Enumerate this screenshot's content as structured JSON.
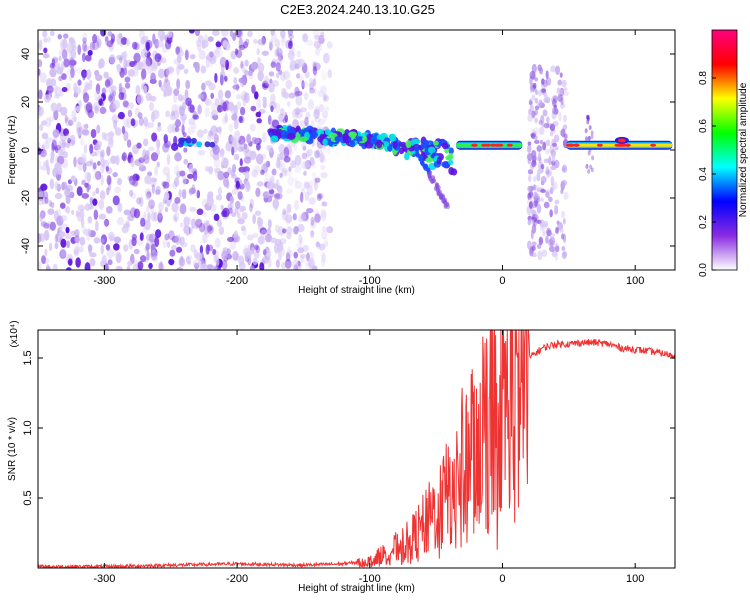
{
  "title": "C2E3.2024.240.13.10.G25",
  "chart_data": [
    {
      "type": "heatmap",
      "xlabel": "Height of straight line (km)",
      "ylabel": "Frequency (Hz)",
      "xlim": [
        -350,
        130
      ],
      "ylim": [
        -50,
        50
      ],
      "xticks": [
        -300,
        -200,
        -100,
        0,
        100
      ],
      "yticks": [
        -40,
        -20,
        0,
        20,
        40
      ],
      "colorbar": {
        "label": "Normalized spectral amplitude",
        "range": [
          0,
          1
        ],
        "ticks": [
          "0.0",
          "0.2",
          "0.4",
          "0.6",
          "0.8"
        ],
        "colormap": [
          "#ffffff",
          "#8a2be2",
          "#0000ff",
          "#00ffff",
          "#00ff00",
          "#ffff00",
          "#ff0000",
          "#ff0080"
        ]
      },
      "features": [
        {
          "x_range": [
            -350,
            -130
          ],
          "freq_range": [
            -50,
            50
          ],
          "amplitude": 0.2
        },
        {
          "x_range": [
            -175,
            -35
          ],
          "freq": [
            7,
            2
          ],
          "amplitude": 0.5
        },
        {
          "x_range": [
            -35,
            15
          ],
          "freq": 2,
          "amplitude": 0.7
        },
        {
          "x_range": [
            48,
            128
          ],
          "freq": 2,
          "amplitude": 0.9
        }
      ]
    },
    {
      "type": "line",
      "xlabel": "Height of straight line (km)",
      "ylabel": "SNR (10 * v/v)",
      "y_multiplier": "(x10⁴)",
      "xlim": [
        -350,
        130
      ],
      "ylim": [
        0,
        1.7
      ],
      "xticks": [
        -300,
        -200,
        -100,
        0,
        100
      ],
      "yticks": [
        "0.5",
        "1.0",
        "1.5"
      ],
      "color": "#ee3333",
      "series": [
        {
          "x": [
            -350,
            -300,
            -250,
            -200,
            -150,
            -120,
            -100,
            -90,
            -80,
            -70,
            -60,
            -50,
            -40,
            -30,
            -20,
            -10,
            0,
            10,
            20,
            30,
            40,
            50,
            60,
            70,
            80,
            90,
            100,
            110,
            128
          ],
          "values": [
            0.01,
            0.01,
            0.02,
            0.03,
            0.02,
            0.03,
            0.05,
            0.1,
            0.15,
            0.2,
            0.3,
            0.42,
            0.55,
            0.75,
            0.95,
            1.1,
            1.2,
            1.35,
            1.5,
            1.57,
            1.6,
            1.6,
            1.61,
            1.61,
            1.6,
            1.57,
            1.56,
            1.55,
            1.52
          ]
        }
      ]
    }
  ]
}
